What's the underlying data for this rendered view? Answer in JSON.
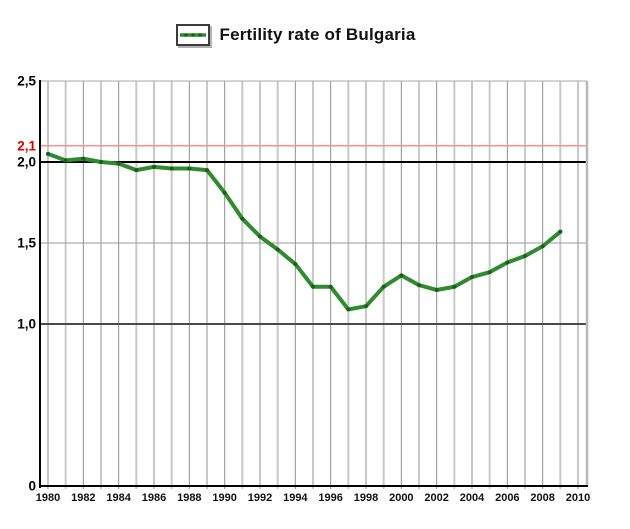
{
  "legend": {
    "label": "Fertility rate of Bulgaria"
  },
  "colors": {
    "line": "#2e8b2e",
    "marker": "#1d5e1d",
    "replacement_line": "#ff9090",
    "replacement_label": "#e00000",
    "axis": "#000000",
    "grid_even_year": "#909090",
    "grid_odd_year": "#c9c9c9",
    "right_border": "#b8b8b8",
    "background": "#ffffff"
  },
  "chart_data": {
    "type": "line",
    "title": "Fertility rate of Bulgaria",
    "xlabel": "",
    "ylabel": "",
    "xlim": [
      1980,
      2010
    ],
    "ylim": [
      0,
      2.5
    ],
    "grid": true,
    "legend_position": "top",
    "x": [
      1980,
      1981,
      1982,
      1983,
      1984,
      1985,
      1986,
      1987,
      1988,
      1989,
      1990,
      1991,
      1992,
      1993,
      1994,
      1995,
      1996,
      1997,
      1998,
      1999,
      2000,
      2001,
      2002,
      2003,
      2004,
      2005,
      2006,
      2007,
      2008,
      2009
    ],
    "series": [
      {
        "name": "Fertility rate of Bulgaria",
        "values": [
          2.05,
          2.01,
          2.02,
          2.0,
          1.99,
          1.95,
          1.97,
          1.96,
          1.96,
          1.95,
          1.81,
          1.65,
          1.54,
          1.46,
          1.37,
          1.23,
          1.23,
          1.09,
          1.11,
          1.23,
          1.3,
          1.24,
          1.21,
          1.23,
          1.29,
          1.32,
          1.38,
          1.42,
          1.48,
          1.57
        ]
      }
    ],
    "x_ticks": [
      {
        "value": 1980,
        "label": "1980"
      },
      {
        "value": 1982,
        "label": "1982"
      },
      {
        "value": 1984,
        "label": "1984"
      },
      {
        "value": 1986,
        "label": "1986"
      },
      {
        "value": 1988,
        "label": "1988"
      },
      {
        "value": 1990,
        "label": "1990"
      },
      {
        "value": 1992,
        "label": "1992"
      },
      {
        "value": 1994,
        "label": "1994"
      },
      {
        "value": 1996,
        "label": "1996"
      },
      {
        "value": 1998,
        "label": "1998"
      },
      {
        "value": 2000,
        "label": "2000"
      },
      {
        "value": 2002,
        "label": "2002"
      },
      {
        "value": 2004,
        "label": "2004"
      },
      {
        "value": 2006,
        "label": "2006"
      },
      {
        "value": 2008,
        "label": "2008"
      },
      {
        "value": 2010,
        "label": "2010"
      }
    ],
    "y_ticks": [
      {
        "value": 2.5,
        "label": "2,5",
        "color": "#000000"
      },
      {
        "value": 2.1,
        "label": "2,1",
        "color": "#e00000"
      },
      {
        "value": 2.0,
        "label": "2,0",
        "color": "#000000"
      },
      {
        "value": 1.5,
        "label": "1,5",
        "color": "#000000"
      },
      {
        "value": 1.0,
        "label": "1,0",
        "color": "#000000"
      },
      {
        "value": 0,
        "label": "0",
        "color": "#000000"
      }
    ],
    "h_lines": [
      {
        "value": 2.5,
        "color": "#aaaaaa",
        "width": 1,
        "role": "top-border"
      },
      {
        "value": 2.1,
        "color": "#ff9090",
        "width": 1.5,
        "role": "replacement-rate-line"
      },
      {
        "value": 2.0,
        "color": "#000000",
        "width": 2,
        "role": "major-gridline"
      },
      {
        "value": 1.5,
        "color": "#9a9a9a",
        "width": 1,
        "role": "gridline"
      },
      {
        "value": 1.0,
        "color": "#4a4a4a",
        "width": 2,
        "role": "major-gridline"
      }
    ]
  }
}
